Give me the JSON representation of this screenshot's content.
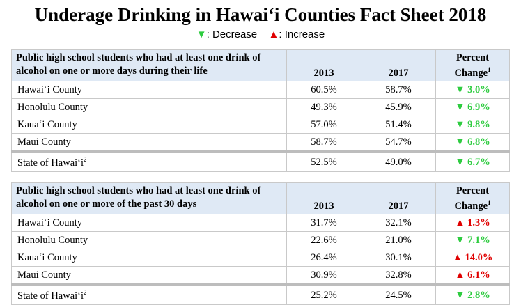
{
  "title": "Underage Drinking in Hawaiʻi Counties Fact Sheet 2018",
  "legend": {
    "decrease_symbol": "▼",
    "decrease_label": ": Decrease",
    "increase_symbol": "▲",
    "increase_label": ": Increase",
    "decrease_color": "#2ecc40",
    "increase_color": "#e00000"
  },
  "tables": [
    {
      "description": "Public high school students who had at least one drink of alcohol on one or more days during their life",
      "col_2013": "2013",
      "col_2017": "2017",
      "col_change": "Percent Change",
      "col_change_sup": "1",
      "rows": [
        {
          "name": "Hawaiʻi County",
          "v2013": "60.5%",
          "v2017": "58.7%",
          "change": "▼ 3.0%"
        },
        {
          "name": "Honolulu County",
          "v2013": "49.3%",
          "v2017": "45.9%",
          "change": "▼ 6.9%"
        },
        {
          "name": "Kauaʻi County",
          "v2013": "57.0%",
          "v2017": "51.4%",
          "change": "▼ 9.8%"
        },
        {
          "name": "Maui County",
          "v2013": "58.7%",
          "v2017": "54.7%",
          "change": "▼ 6.8%"
        }
      ],
      "state": {
        "name": "State of Hawaiʻi",
        "sup": "2",
        "v2013": "52.5%",
        "v2017": "49.0%",
        "change": "▼ 6.7%"
      }
    },
    {
      "description": "Public high school students who had at least one drink of alcohol on one or more of the past 30 days",
      "col_2013": "2013",
      "col_2017": "2017",
      "col_change": "Percent Change",
      "col_change_sup": "1",
      "rows": [
        {
          "name": "Hawaiʻi County",
          "v2013": "31.7%",
          "v2017": "32.1%",
          "change": "▲ 1.3%"
        },
        {
          "name": "Honolulu County",
          "v2013": "22.6%",
          "v2017": "21.0%",
          "change": "▼ 7.1%"
        },
        {
          "name": "Kauaʻi County",
          "v2013": "26.4%",
          "v2017": "30.1%",
          "change": "▲ 14.0%"
        },
        {
          "name": "Maui County",
          "v2013": "30.9%",
          "v2017": "32.8%",
          "change": "▲ 6.1%"
        }
      ],
      "state": {
        "name": "State of Hawaiʻi",
        "sup": "2",
        "v2013": "25.2%",
        "v2017": "24.5%",
        "change": "▼ 2.8%"
      }
    }
  ]
}
